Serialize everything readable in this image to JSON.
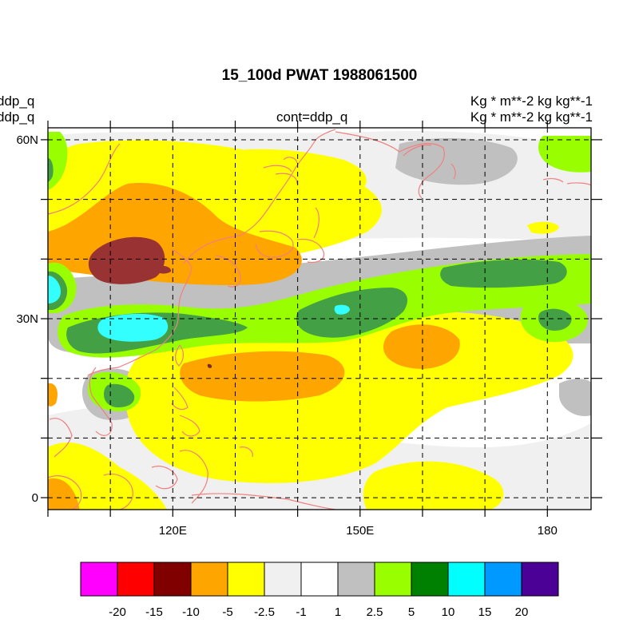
{
  "map": {
    "title": "15_100d PWAT  1988061500",
    "left_label_1": "ddp_q",
    "left_label_2": "ddp_q",
    "center_label": "cont=ddp_q",
    "right_label_1": "Kg  * m**-2 kg kg**-1",
    "right_label_2": "Kg  * m**-2 kg kg**-1",
    "lat_ticks": [
      {
        "label": "60N",
        "lat": 60
      },
      {
        "label": "30N",
        "lat": 30
      },
      {
        "label": "0",
        "lat": 0
      }
    ],
    "lon_ticks": [
      {
        "label": "120E",
        "lon": 120
      },
      {
        "label": "150E",
        "lon": 150
      },
      {
        "label": "180",
        "lon": 180
      }
    ],
    "extent": {
      "lon_min": 100,
      "lon_max": 187,
      "lat_min": -2,
      "lat_max": 62
    },
    "grid_lines": {
      "lon": [
        100,
        110,
        120,
        130,
        140,
        150,
        160,
        170,
        180
      ],
      "lat": [
        0,
        10,
        20,
        30,
        40,
        50,
        60
      ]
    },
    "coastline_color": "#f08080"
  },
  "colorbar": {
    "colors": [
      "#ff00ff",
      "#ff0000",
      "#800000",
      "#ffa500",
      "#ffff00",
      "#f0f0f0",
      "#ffffff",
      "#c0c0c0",
      "#99ff00",
      "#008000",
      "#00ffff",
      "#0099ff",
      "#4b0096"
    ],
    "labels": [
      "-20",
      "-15",
      "-10",
      "-5",
      "-2.5",
      "-1",
      "1",
      "2.5",
      "5",
      "10",
      "15",
      "20"
    ]
  }
}
